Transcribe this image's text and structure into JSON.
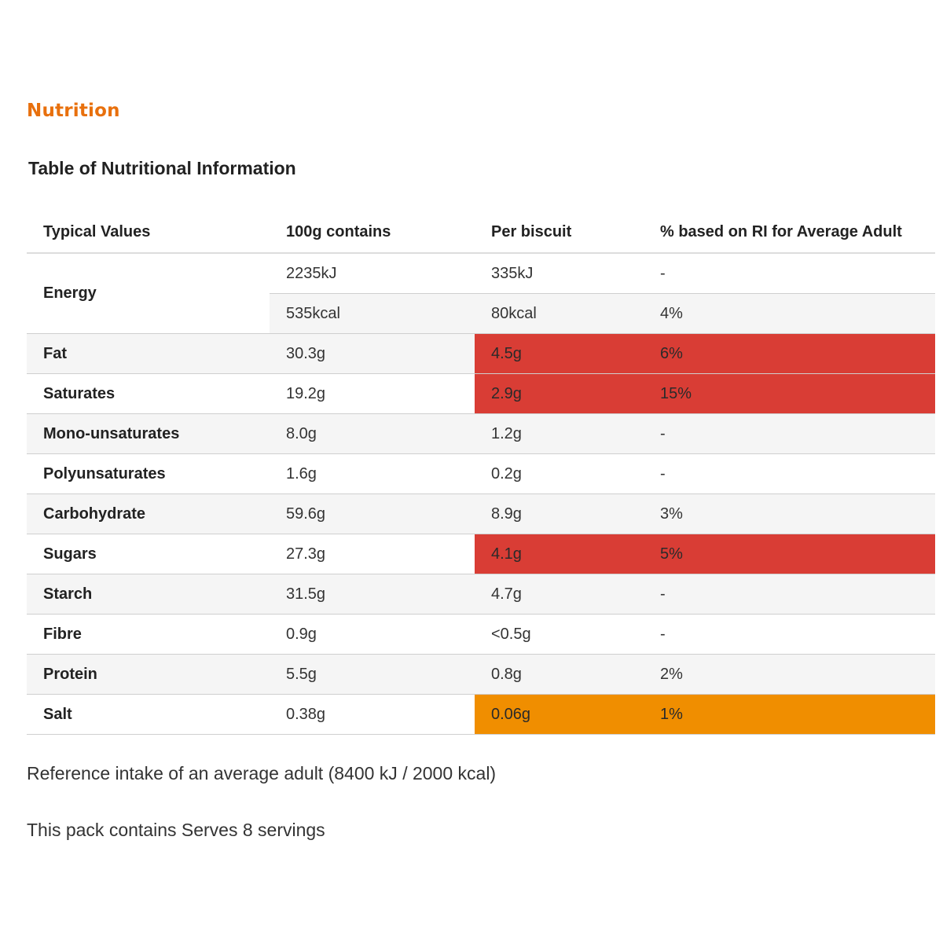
{
  "section_title": "Nutrition",
  "table_title": "Table of Nutritional Information",
  "colors": {
    "section_title": "#e8700d",
    "high": "#d93d35",
    "medium": "#f08e00",
    "row_alt": "#f5f5f5"
  },
  "table": {
    "headers": [
      "Typical Values",
      "100g contains",
      "Per biscuit",
      "% based on RI for Average Adult"
    ],
    "energy": {
      "label": "Energy",
      "rows": [
        {
          "per100": "2235kJ",
          "per_biscuit": "335kJ",
          "ri": "-"
        },
        {
          "per100": "535kcal",
          "per_biscuit": "80kcal",
          "ri": "4%"
        }
      ]
    },
    "rows": [
      {
        "label": "Fat",
        "per100": "30.3g",
        "per_biscuit": "4.5g",
        "ri": "6%",
        "level": "high"
      },
      {
        "label": "Saturates",
        "per100": "19.2g",
        "per_biscuit": "2.9g",
        "ri": "15%",
        "level": "high"
      },
      {
        "label": "Mono-unsaturates",
        "per100": "8.0g",
        "per_biscuit": "1.2g",
        "ri": "-",
        "level": ""
      },
      {
        "label": "Polyunsaturates",
        "per100": "1.6g",
        "per_biscuit": "0.2g",
        "ri": "-",
        "level": ""
      },
      {
        "label": "Carbohydrate",
        "per100": "59.6g",
        "per_biscuit": "8.9g",
        "ri": "3%",
        "level": ""
      },
      {
        "label": "Sugars",
        "per100": "27.3g",
        "per_biscuit": "4.1g",
        "ri": "5%",
        "level": "high"
      },
      {
        "label": "Starch",
        "per100": "31.5g",
        "per_biscuit": "4.7g",
        "ri": "-",
        "level": ""
      },
      {
        "label": "Fibre",
        "per100": "0.9g",
        "per_biscuit": "<0.5g",
        "ri": "-",
        "level": ""
      },
      {
        "label": "Protein",
        "per100": "5.5g",
        "per_biscuit": "0.8g",
        "ri": "2%",
        "level": ""
      },
      {
        "label": "Salt",
        "per100": "0.38g",
        "per_biscuit": "0.06g",
        "ri": "1%",
        "level": "medium"
      }
    ]
  },
  "reference_note": "Reference intake of an average adult (8400 kJ / 2000 kcal)",
  "pack_note": "This pack contains Serves 8 servings"
}
